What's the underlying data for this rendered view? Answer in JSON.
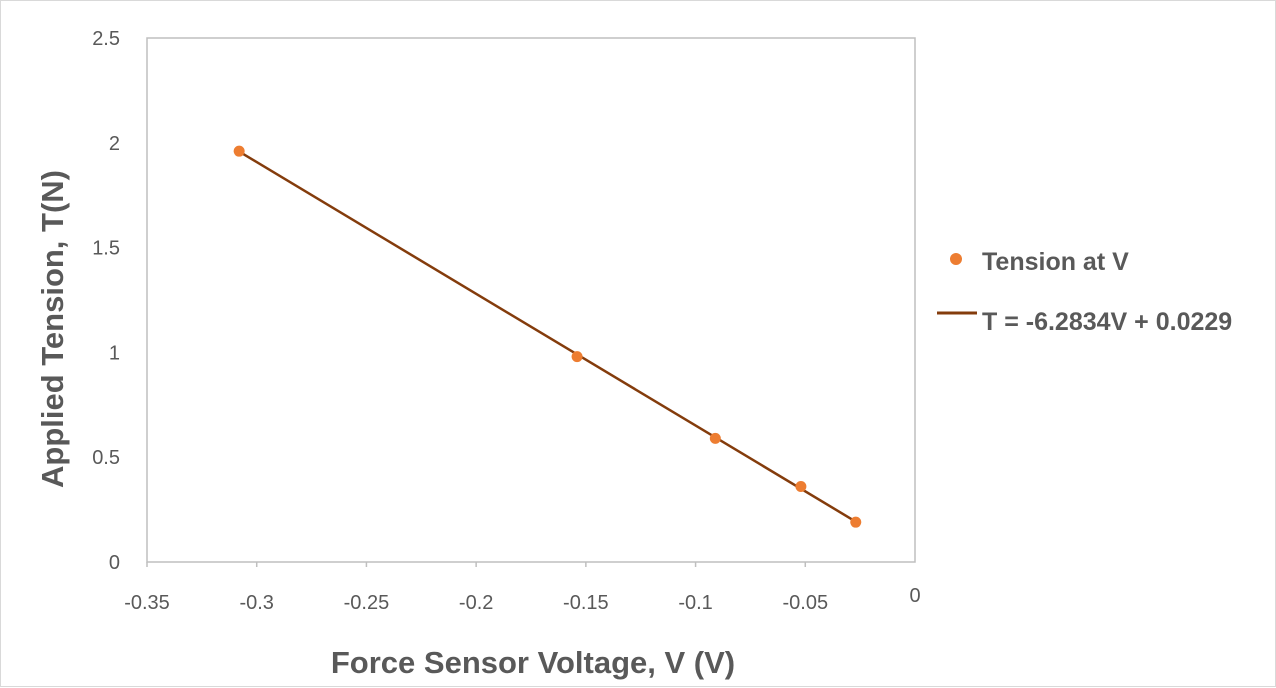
{
  "chart_data": {
    "type": "scatter",
    "title": "",
    "xlabel": "Force Sensor Voltage, V (V)",
    "ylabel": "Applied Tension, T(N)",
    "xlim": [
      -0.35,
      0
    ],
    "ylim": [
      0,
      2.5
    ],
    "x_ticks": [
      "-0.35",
      "-0.3",
      "-0.25",
      "-0.2",
      "-0.15",
      "-0.1",
      "-0.05",
      "0"
    ],
    "y_ticks": [
      "0",
      "0.5",
      "1",
      "1.5",
      "2",
      "2.5"
    ],
    "grid": false,
    "legend_position": "right",
    "series": [
      {
        "name": "Tension at V",
        "kind": "scatter",
        "color": "#ED7D31",
        "x": [
          -0.308,
          -0.154,
          -0.091,
          -0.052,
          -0.027
        ],
        "y": [
          1.96,
          0.98,
          0.59,
          0.36,
          0.19
        ]
      },
      {
        "name": "T = -6.2834V + 0.0229",
        "kind": "trendline",
        "color": "#843C0C",
        "slope": -6.2834,
        "intercept": 0.0229,
        "x_range": [
          -0.308,
          -0.027
        ]
      }
    ]
  }
}
